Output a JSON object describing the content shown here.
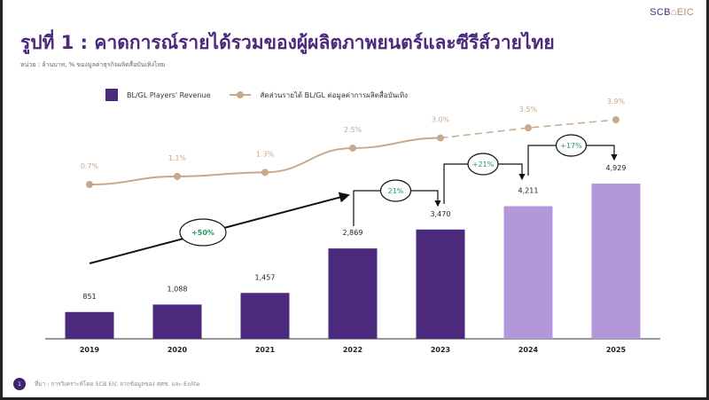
{
  "logo": {
    "scb": "SCB",
    "eic": "EIC"
  },
  "title": "รูปที่ 1 : คาดการณ์รายได้รวมของผู้ผลิตภาพยนตร์และซีรีส์วายไทย",
  "unit": "หน่วย : ล้านบาท, % ของมูลค่าธุรกิจผลิตสื่อบันเทิงไทย",
  "footer": {
    "page": "1",
    "source": "ที่มา : การวิเคราะห์โดย SCB EIC จากข้อมูลของ สศช. และ Enlite"
  },
  "colors": {
    "actual": "#4b2a7e",
    "forecast": "#b298d8",
    "line": "#c9a98a",
    "growth": "#1a9e5a"
  },
  "chart_data": {
    "type": "bar",
    "categories": [
      "2019",
      "2020",
      "2021",
      "2022",
      "2023",
      "2024",
      "2025"
    ],
    "series": [
      {
        "name": "BL/GL Players' Revenue",
        "type": "bar",
        "values": [
          851,
          1088,
          1457,
          2869,
          3470,
          4211,
          4929
        ],
        "labels": [
          "851",
          "1,088",
          "1,457",
          "2,869",
          "3,470",
          "4,211",
          "4,929"
        ],
        "forecast_from": "2024"
      },
      {
        "name": "สัดส่วนรายได้ BL/GL ต่อมูลค่าการผลิตสื่อบันเทิง",
        "type": "line",
        "values": [
          0.7,
          1.1,
          1.3,
          2.5,
          3.0,
          3.5,
          3.9
        ],
        "labels": [
          "0.7%",
          "1.1%",
          "1.3%",
          "2.5%",
          "3.0%",
          "3.5%",
          "3.9%"
        ],
        "dashed_from": "2023"
      }
    ],
    "annotations": [
      {
        "from": "2019",
        "to": "2022",
        "label": "+50%"
      },
      {
        "from": "2022",
        "to": "2023",
        "label": "21%"
      },
      {
        "from": "2023",
        "to": "2024",
        "label": "+21%"
      },
      {
        "from": "2024",
        "to": "2025",
        "label": "+17%"
      }
    ],
    "legend": "top-left"
  }
}
